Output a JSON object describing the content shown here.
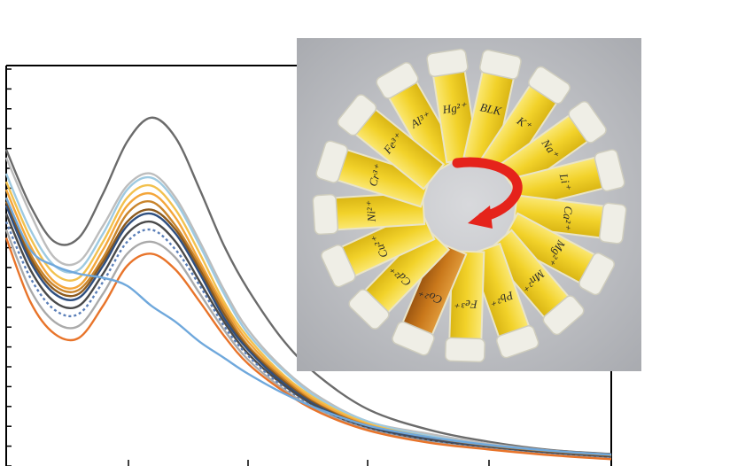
{
  "chart_data": {
    "type": "line",
    "title": "",
    "xlabel": "",
    "ylabel": "",
    "xlim": [
      0,
      500
    ],
    "ylim": [
      0,
      10
    ],
    "x": [
      0,
      20,
      40,
      60,
      80,
      100,
      120,
      140,
      160,
      180,
      200,
      230,
      260,
      300,
      350,
      400,
      450,
      500
    ],
    "grid": false,
    "legend": "none",
    "series": [
      {
        "color": "#6b6b6b",
        "values": [
          7.9,
          6.5,
          5.6,
          5.7,
          6.8,
          8.1,
          8.7,
          8.2,
          6.9,
          5.5,
          4.4,
          3.1,
          2.2,
          1.4,
          0.9,
          0.6,
          0.4,
          0.3
        ]
      },
      {
        "color": "#bdbdbd",
        "values": [
          7.7,
          6.3,
          5.2,
          5.1,
          6.0,
          7.0,
          7.3,
          6.7,
          5.6,
          4.4,
          3.4,
          2.4,
          1.7,
          1.1,
          0.8,
          0.55,
          0.38,
          0.28
        ]
      },
      {
        "color": "#9ecae1",
        "values": [
          7.3,
          5.9,
          5.0,
          4.9,
          5.8,
          6.9,
          7.2,
          6.6,
          5.5,
          4.3,
          3.3,
          2.35,
          1.65,
          1.1,
          0.75,
          0.52,
          0.36,
          0.26
        ]
      },
      {
        "color": "#f2c14e",
        "values": [
          7.1,
          5.7,
          4.8,
          4.7,
          5.6,
          6.7,
          7.0,
          6.4,
          5.3,
          4.1,
          3.2,
          2.25,
          1.6,
          1.05,
          0.72,
          0.5,
          0.35,
          0.25
        ]
      },
      {
        "color": "#f4a63a",
        "values": [
          6.9,
          5.5,
          4.6,
          4.5,
          5.4,
          6.5,
          6.8,
          6.2,
          5.1,
          4.0,
          3.1,
          2.2,
          1.55,
          1.02,
          0.7,
          0.48,
          0.34,
          0.24
        ]
      },
      {
        "color": "#c9842b",
        "values": [
          6.7,
          5.3,
          4.5,
          4.4,
          5.2,
          6.3,
          6.6,
          6.0,
          5.0,
          3.9,
          3.0,
          2.15,
          1.5,
          1.0,
          0.68,
          0.47,
          0.33,
          0.23
        ]
      },
      {
        "color": "#8c5a1e",
        "values": [
          6.6,
          5.2,
          4.4,
          4.3,
          5.1,
          6.1,
          6.4,
          5.9,
          4.9,
          3.8,
          2.95,
          2.1,
          1.48,
          0.98,
          0.67,
          0.46,
          0.32,
          0.22
        ]
      },
      {
        "color": "#2f4f7f",
        "values": [
          6.5,
          5.1,
          4.3,
          4.2,
          5.0,
          6.0,
          6.3,
          5.8,
          4.8,
          3.7,
          2.9,
          2.05,
          1.45,
          0.96,
          0.66,
          0.45,
          0.31,
          0.21
        ]
      },
      {
        "color": "#4a4a4a",
        "values": [
          6.3,
          4.9,
          4.1,
          4.0,
          4.8,
          5.8,
          6.1,
          5.6,
          4.6,
          3.6,
          2.8,
          2.0,
          1.42,
          0.94,
          0.64,
          0.44,
          0.3,
          0.2
        ]
      },
      {
        "color": "#5b7fb8",
        "values": [
          6.1,
          4.7,
          3.9,
          3.8,
          4.6,
          5.6,
          5.9,
          5.4,
          4.5,
          3.5,
          2.75,
          1.95,
          1.38,
          0.92,
          0.62,
          0.43,
          0.29,
          0.19
        ]
      },
      {
        "color": "#aaaaaa",
        "values": [
          5.9,
          4.4,
          3.6,
          3.5,
          4.3,
          5.3,
          5.6,
          5.2,
          4.3,
          3.4,
          2.65,
          1.9,
          1.35,
          0.9,
          0.6,
          0.42,
          0.28,
          0.18
        ]
      },
      {
        "color": "#e8742a",
        "values": [
          5.7,
          4.1,
          3.3,
          3.2,
          4.0,
          5.0,
          5.3,
          4.9,
          4.1,
          3.25,
          2.55,
          1.85,
          1.32,
          0.88,
          0.58,
          0.41,
          0.27,
          0.17
        ]
      },
      {
        "color": "#6fa8dc",
        "values": [
          6.7,
          5.4,
          5.0,
          4.8,
          4.7,
          4.5,
          4.0,
          3.6,
          3.1,
          2.7,
          2.3,
          1.8,
          1.4,
          1.0,
          0.72,
          0.52,
          0.38,
          0.28
        ]
      }
    ]
  },
  "photo": {
    "tube_labels": [
      "Al³⁺",
      "Hg²⁺",
      "BLK",
      "K⁺",
      "Na⁺",
      "Li⁺",
      "Ca²⁺",
      "Mg²⁺",
      "Mn²⁺",
      "Pb²⁺",
      "Fe³⁺",
      "Co²⁺",
      "Cd²⁺",
      "Cu²⁺",
      "Ni²⁺",
      "Cr³⁺",
      "Fe³⁺"
    ],
    "arrow_color": "#e5231b",
    "solution_color": "#f2d22a",
    "highlight_solution_color": "#c9781b"
  }
}
